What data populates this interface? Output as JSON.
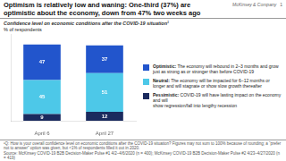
{
  "chart_data": {
    "type": "bar",
    "title": [
      "Optimism is relatively low and waning: One-third (37%) are",
      "optimistic about the economy, down from 47% two weeks ago"
    ],
    "subtitle": [
      "Confidence level on economic conditions after the COVID-19 situation¹",
      "% of respondents"
    ],
    "categories": [
      "April 6",
      "April 27"
    ],
    "series": [
      {
        "name": "Pessimistic: COVID-19 will have lasting impact on the economy and will\nshow regression/fall into lengthy recession",
        "color": "#1a2a5e",
        "values": [
          9,
          12
        ]
      },
      {
        "name": "Neutral: The economy will be impacted for 6–12 months or\nlonger and will stagnate or show slow growth thereafter",
        "color": "#4dc8e8",
        "values": [
          45,
          51
        ]
      },
      {
        "name": "Optimistic: The economy will rebound in 2–3 months and grow\njust as strong as or stronger than before COVID-19",
        "color": "#2255cc",
        "values": [
          47,
          37
        ]
      }
    ],
    "stacked": true,
    "data_labels": true,
    "ylim": [
      0,
      115
    ],
    "tick_labels": "x",
    "grid": false,
    "legend": "right",
    "annotations": [
      "¹Q: How is your overall confidence level on economic conditions after the COVID-19 situation? Figures may not sum to 100% because of rounding; a “prefer not to answer” option was given, but <1% of respondents filled it out in 2020.",
      "Source: McKinsey COVID-19 B2B Decision-Maker Pulse #1 4/2–4/6/2020 (n = 400); McKinsey COVID-19 B2B Decision-Maker Pulse #2 4/23–4/27/2020 (n = 419)",
      "McKinsey & Company",
      "1"
    ]
  }
}
